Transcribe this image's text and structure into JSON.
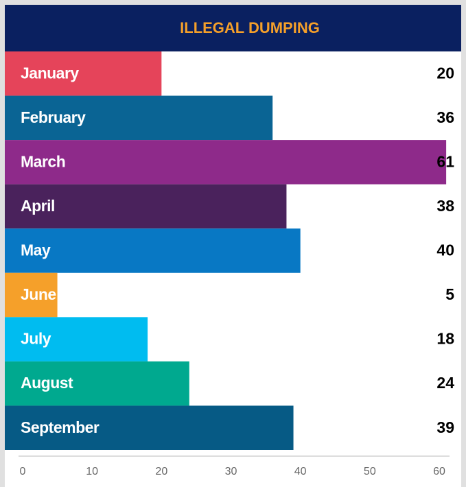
{
  "chart_data": {
    "type": "bar",
    "orientation": "horizontal",
    "title": "ILLEGAL DUMPING",
    "categories": [
      "January",
      "February",
      "March",
      "April",
      "May",
      "June",
      "July",
      "August",
      "September"
    ],
    "values": [
      20,
      36,
      61,
      38,
      40,
      5,
      18,
      24,
      39
    ],
    "colors": [
      "#e5445a",
      "#0a6494",
      "#8e2a8a",
      "#4a225c",
      "#0878c4",
      "#f5a02a",
      "#00bcf0",
      "#00a98f",
      "#065a85"
    ],
    "xlim": [
      0,
      60
    ],
    "xticks": [
      0,
      10,
      20,
      30,
      40,
      50,
      60
    ],
    "grid": false
  }
}
